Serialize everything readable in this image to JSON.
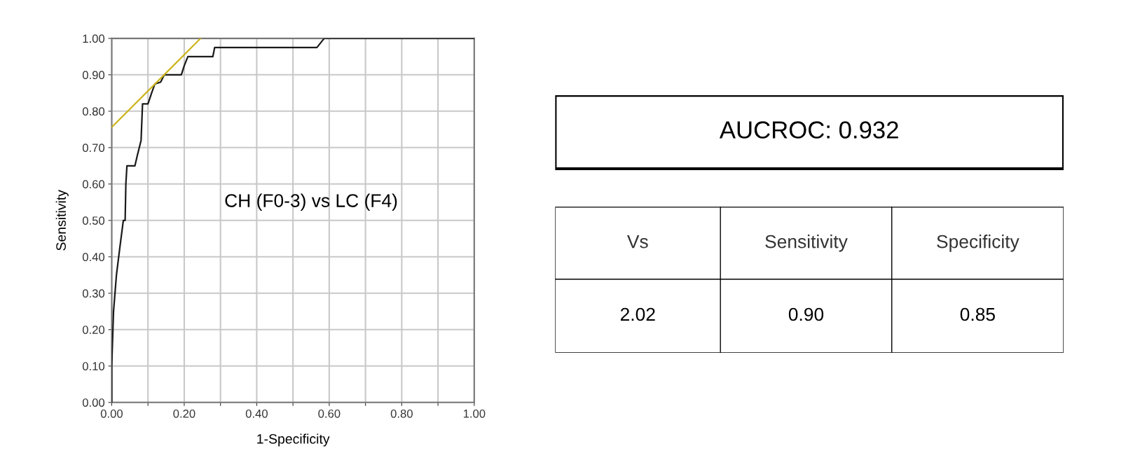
{
  "chart_data": [
    {
      "type": "line",
      "xlabel": "1-Specificity",
      "ylabel": "Sensitivity",
      "annotations": [
        "CH (F0-3) vs LC (F4)"
      ],
      "xlim": [
        0,
        1
      ],
      "ylim": [
        0,
        1
      ],
      "xticks": [
        {
          "value": 0,
          "label": "0.00"
        },
        {
          "value": 0.1,
          "label": null
        },
        {
          "value": 0.2,
          "label": "0.20"
        },
        {
          "value": 0.3,
          "label": null
        },
        {
          "value": 0.4,
          "label": "0.40"
        },
        {
          "value": 0.5,
          "label": null
        },
        {
          "value": 0.6,
          "label": "0.60"
        },
        {
          "value": 0.7,
          "label": null
        },
        {
          "value": 0.8,
          "label": "0.80"
        },
        {
          "value": 0.9,
          "label": null
        },
        {
          "value": 1,
          "label": "1.00"
        }
      ],
      "yticks": [
        {
          "value": 0,
          "label": "0.00"
        },
        {
          "value": 0.1,
          "label": "0.10"
        },
        {
          "value": 0.2,
          "label": "0.20"
        },
        {
          "value": 0.3,
          "label": "0.30"
        },
        {
          "value": 0.4,
          "label": "0.40"
        },
        {
          "value": 0.5,
          "label": "0.50"
        },
        {
          "value": 0.6,
          "label": "0.60"
        },
        {
          "value": 0.7,
          "label": "0.70"
        },
        {
          "value": 0.8,
          "label": "0.80"
        },
        {
          "value": 0.9,
          "label": "0.90"
        },
        {
          "value": 1,
          "label": "1.00"
        }
      ],
      "grid": true,
      "marker": "none",
      "line_style": "solid",
      "series": [
        {
          "color": "#1a1a1a",
          "x": [
            0,
            0,
            0.005,
            0.013,
            0.023,
            0.032,
            0.037,
            0.039,
            0.042,
            0.064,
            0.071,
            0.081,
            0.085,
            0.1,
            0.11,
            0.119,
            0.135,
            0.145,
            0.192,
            0.2,
            0.21,
            0.279,
            0.284,
            0.566,
            0.586,
            1
          ],
          "values": [
            0,
            0.1,
            0.25,
            0.35,
            0.43,
            0.5,
            0.5,
            0.6,
            0.65,
            0.65,
            0.68,
            0.72,
            0.82,
            0.82,
            0.85,
            0.875,
            0.88,
            0.9,
            0.9,
            0.925,
            0.95,
            0.95,
            0.975,
            0.975,
            1,
            1
          ]
        },
        {
          "color": "#cdb51c",
          "x": [
            0,
            0.245
          ],
          "values": [
            0.756,
            1
          ]
        }
      ]
    },
    {
      "type": "other",
      "title": "AUCROC: 0.932",
      "annotations": [
        "Vs",
        "Sensitivity",
        "Specificity",
        "2.02",
        "0.90",
        "0.85"
      ]
    }
  ]
}
